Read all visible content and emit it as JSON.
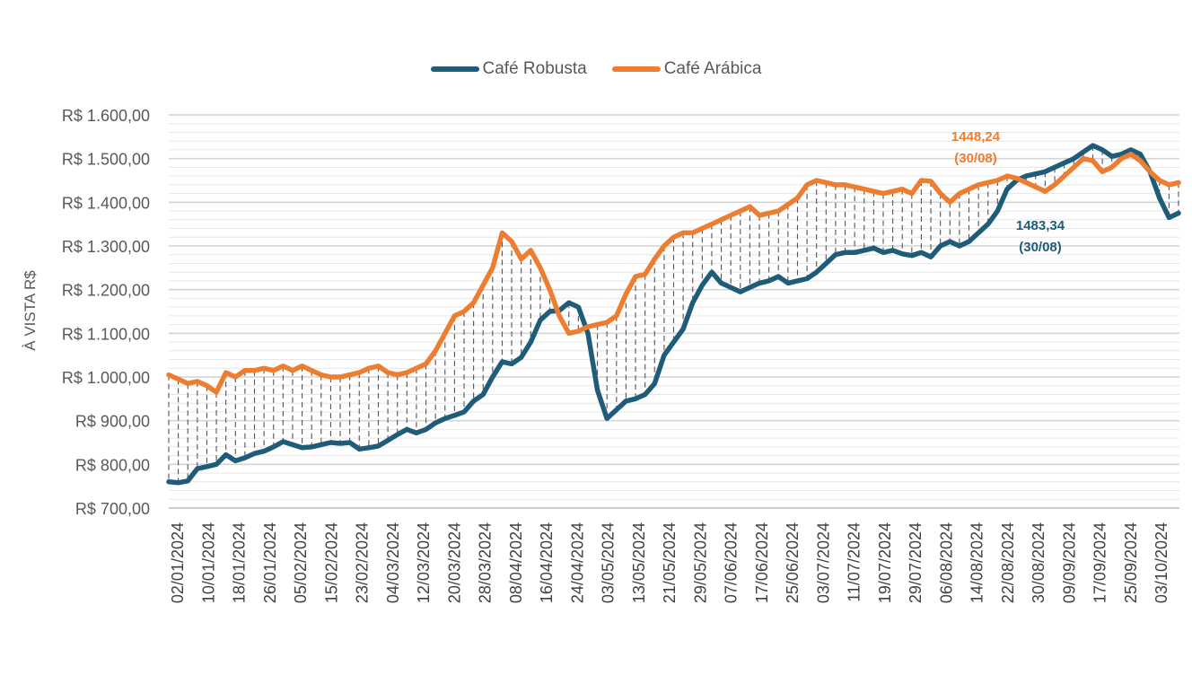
{
  "chart_data": {
    "type": "line",
    "title": "",
    "ylabel": "À VISTA R$",
    "xlabel": "",
    "ylim": [
      700,
      1600
    ],
    "y_ticks": [
      "R$ 700,00",
      "R$ 800,00",
      "R$ 900,00",
      "R$ 1.000,00",
      "R$ 1.100,00",
      "R$ 1.200,00",
      "R$ 1.300,00",
      "R$ 1.400,00",
      "R$ 1.500,00",
      "R$ 1.600,00"
    ],
    "y_tick_values": [
      700,
      800,
      900,
      1000,
      1100,
      1200,
      1300,
      1400,
      1500,
      1600
    ],
    "x_tick_labels": [
      "02/01/2024",
      "10/01/2024",
      "18/01/2024",
      "26/01/2024",
      "05/02/2024",
      "15/02/2024",
      "23/02/2024",
      "04/03/2024",
      "12/03/2024",
      "20/03/2024",
      "28/03/2024",
      "08/04/2024",
      "16/04/2024",
      "24/04/2024",
      "03/05/2024",
      "13/05/2024",
      "21/05/2024",
      "29/05/2024",
      "07/06/2024",
      "17/06/2024",
      "25/06/2024",
      "03/07/2024",
      "11/07/2024",
      "19/07/2024",
      "29/07/2024",
      "06/08/2024",
      "14/08/2024",
      "22/08/2024",
      "30/08/2024",
      "09/09/2024",
      "17/09/2024",
      "25/09/2024",
      "03/10/2024"
    ],
    "grid": true,
    "legend_position": "top",
    "series": [
      {
        "name": "Café Robusta",
        "color": "#1f5c7a",
        "values": [
          760,
          758,
          762,
          790,
          795,
          800,
          822,
          808,
          815,
          825,
          830,
          840,
          852,
          845,
          838,
          840,
          845,
          850,
          848,
          850,
          835,
          838,
          842,
          855,
          868,
          880,
          872,
          880,
          895,
          905,
          912,
          920,
          945,
          960,
          1000,
          1035,
          1030,
          1045,
          1080,
          1130,
          1150,
          1152,
          1170,
          1160,
          1100,
          970,
          905,
          925,
          945,
          950,
          960,
          985,
          1050,
          1080,
          1110,
          1170,
          1210,
          1240,
          1215,
          1205,
          1195,
          1205,
          1215,
          1220,
          1230,
          1215,
          1220,
          1225,
          1240,
          1260,
          1280,
          1285,
          1285,
          1290,
          1295,
          1285,
          1290,
          1282,
          1278,
          1285,
          1275,
          1300,
          1310,
          1300,
          1310,
          1330,
          1350,
          1380,
          1430,
          1450,
          1460,
          1465,
          1470,
          1480,
          1490,
          1500,
          1515,
          1530,
          1520,
          1505,
          1510,
          1520,
          1510,
          1470,
          1410,
          1365,
          1375
        ],
        "annotation": {
          "label": "1483,34",
          "sublabel": "(30/08)",
          "color": "#1f5c7a"
        }
      },
      {
        "name": "Café Arábica",
        "color": "#ed7d31",
        "values": [
          1005,
          995,
          985,
          990,
          980,
          965,
          1010,
          1000,
          1015,
          1015,
          1020,
          1015,
          1025,
          1015,
          1025,
          1015,
          1005,
          1000,
          1000,
          1005,
          1010,
          1020,
          1025,
          1010,
          1005,
          1010,
          1020,
          1030,
          1060,
          1100,
          1140,
          1150,
          1170,
          1210,
          1250,
          1330,
          1310,
          1270,
          1290,
          1250,
          1200,
          1140,
          1100,
          1105,
          1115,
          1120,
          1125,
          1140,
          1190,
          1230,
          1235,
          1270,
          1300,
          1320,
          1330,
          1330,
          1340,
          1350,
          1360,
          1370,
          1380,
          1390,
          1370,
          1375,
          1380,
          1395,
          1410,
          1440,
          1450,
          1445,
          1440,
          1440,
          1435,
          1430,
          1425,
          1420,
          1425,
          1430,
          1420,
          1450,
          1448,
          1420,
          1400,
          1420,
          1430,
          1440,
          1445,
          1450,
          1460,
          1455,
          1445,
          1435,
          1425,
          1440,
          1460,
          1480,
          1500,
          1495,
          1470,
          1480,
          1500,
          1510,
          1495,
          1470,
          1450,
          1440,
          1445
        ],
        "annotation": {
          "label": "1448,24",
          "sublabel": "(30/08)",
          "color": "#ed7d31"
        }
      }
    ]
  }
}
